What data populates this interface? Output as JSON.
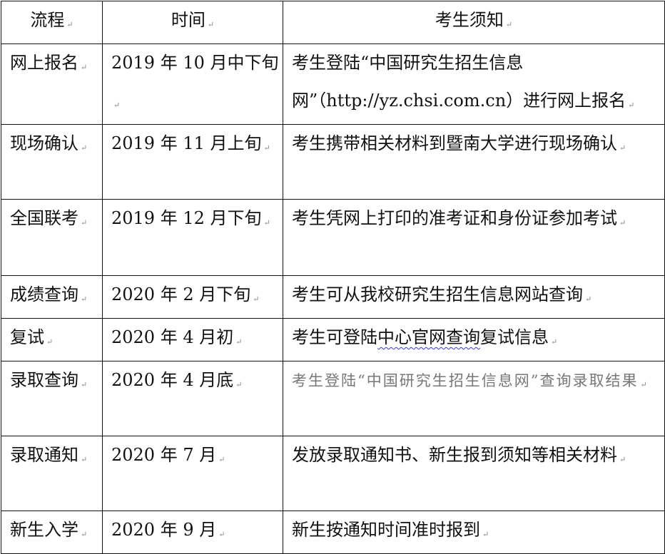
{
  "headers": [
    "流程",
    "时间",
    "考生须知"
  ],
  "rows": [
    {
      "step": "网上报名",
      "time": "2019 年 10 月中下旬",
      "notice": "考生登陆“中国研究生招生信息网”（http://yz.chsi.com.cn）进行网上报名"
    },
    {
      "step": "现场确认",
      "time": "2019 年 11 月上旬",
      "notice": "考生携带相关材料到暨南大学进行现场确认"
    },
    {
      "step": "全国联考",
      "time": "2019 年 12 月下旬",
      "notice": "考生凭网上打印的准考证和身份证参加考试"
    },
    {
      "step": "成绩查询",
      "time": "2020 年 2 月下旬",
      "notice": "考生可从我校研究生招生信息网站查询"
    },
    {
      "step": "复试",
      "time": "2020 年 4 月初",
      "notice_parts": [
        "考生可登陆",
        "中心官网查询",
        "复试信息"
      ]
    },
    {
      "step": "录取查询",
      "time": "2020 年 4 月底",
      "notice": "考生登陆“中国研究生招生信息网”查询录取结果"
    },
    {
      "step": "录取通知",
      "time": "2020 年 7 月",
      "notice": "发放录取通知书、新生报到须知等相关材料"
    },
    {
      "step": "新生入学",
      "time": "2020 年 9 月",
      "notice": "新生按通知时间准时报到"
    }
  ],
  "colors": {
    "spellcheck_underline": "#3333ff",
    "gray_text": "#777777"
  }
}
